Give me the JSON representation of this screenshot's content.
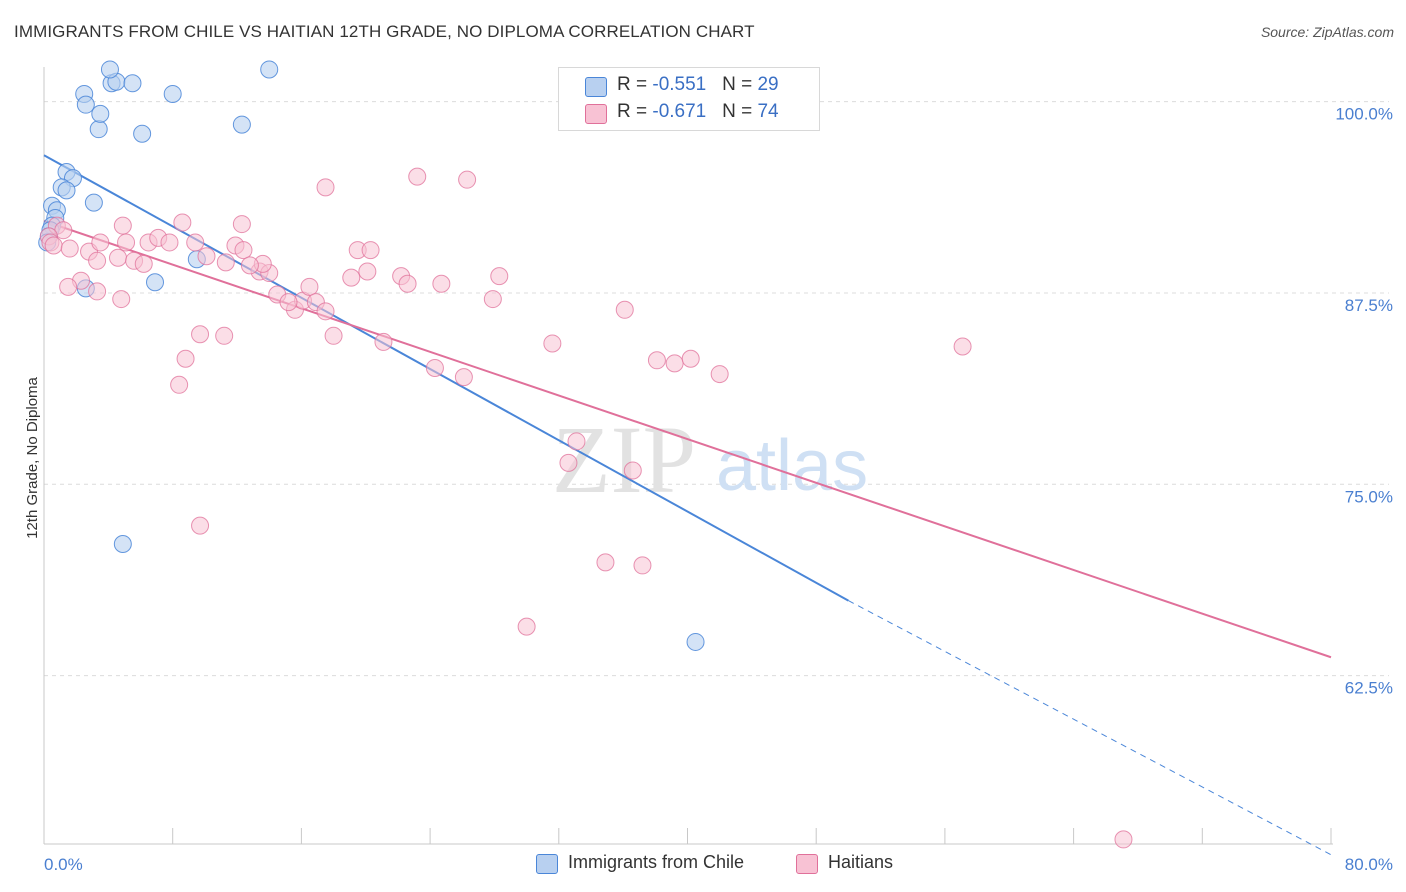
{
  "header": {
    "title": "IMMIGRANTS FROM CHILE VS HAITIAN 12TH GRADE, NO DIPLOMA CORRELATION CHART",
    "source": "Source: ZipAtlas.com"
  },
  "watermark": {
    "zip": "ZIP",
    "atlas": "atlas"
  },
  "legend": {
    "rows": [
      {
        "r_label": "R = ",
        "r_value": "-0.551",
        "n_label": "N = ",
        "n_value": "29"
      },
      {
        "r_label": "R = ",
        "r_value": "-0.671",
        "n_label": "N = ",
        "n_value": "74"
      }
    ]
  },
  "bottom_legend": {
    "chile": "Immigrants from Chile",
    "haitians": "Haitians"
  },
  "chart_data": {
    "type": "scatter",
    "title": "IMMIGRANTS FROM CHILE VS HAITIAN 12TH GRADE, NO DIPLOMA CORRELATION CHART",
    "xlabel": "",
    "ylabel": "12th Grade, No Diploma",
    "xlim": [
      0,
      80
    ],
    "ylim": [
      51.5,
      102
    ],
    "x_tick_labels": [
      "0.0%",
      "80.0%"
    ],
    "y_ticks": [
      62.5,
      75.0,
      87.5,
      100.0
    ],
    "y_tick_labels": [
      "62.5%",
      "75.0%",
      "87.5%",
      "100.0%"
    ],
    "colors": {
      "chile": "#4a86d8",
      "chile_fill": "#b8d0f0",
      "haitians": "#e0709a",
      "haitians_fill": "#f8c2d4",
      "tick": "#4a7fd0"
    },
    "series": [
      {
        "name": "Immigrants from Chile",
        "r": -0.551,
        "n": 29,
        "points": [
          [
            2.5,
            100.5
          ],
          [
            2.6,
            99.8
          ],
          [
            3.4,
            98.2
          ],
          [
            3.5,
            99.2
          ],
          [
            4.2,
            101.2
          ],
          [
            4.5,
            101.3
          ],
          [
            5.5,
            101.2
          ],
          [
            4.1,
            102.1
          ],
          [
            14.0,
            102.1
          ],
          [
            8.0,
            100.5
          ],
          [
            6.1,
            97.9
          ],
          [
            12.3,
            98.5
          ],
          [
            1.4,
            95.4
          ],
          [
            1.8,
            95.0
          ],
          [
            1.1,
            94.4
          ],
          [
            1.4,
            94.2
          ],
          [
            3.1,
            93.4
          ],
          [
            0.5,
            93.2
          ],
          [
            0.8,
            92.9
          ],
          [
            0.7,
            92.4
          ],
          [
            0.5,
            91.9
          ],
          [
            0.4,
            91.6
          ],
          [
            0.3,
            91.2
          ],
          [
            0.2,
            90.8
          ],
          [
            9.5,
            89.7
          ],
          [
            2.6,
            87.8
          ],
          [
            6.9,
            88.2
          ],
          [
            4.9,
            71.1
          ],
          [
            40.5,
            64.7
          ]
        ],
        "trend": {
          "x_start": 0,
          "y_start": 96.5,
          "x_solid_end": 50,
          "y_solid_end": 67.4,
          "x_dash_end": 80,
          "y_dash_end": 50.8
        }
      },
      {
        "name": "Haitians",
        "r": -0.671,
        "n": 74,
        "points": [
          [
            0.8,
            91.9
          ],
          [
            1.2,
            91.6
          ],
          [
            0.3,
            91.2
          ],
          [
            0.4,
            90.8
          ],
          [
            0.6,
            90.6
          ],
          [
            1.6,
            90.4
          ],
          [
            2.3,
            88.3
          ],
          [
            2.8,
            90.2
          ],
          [
            3.3,
            89.6
          ],
          [
            3.5,
            90.8
          ],
          [
            4.6,
            89.8
          ],
          [
            4.9,
            91.9
          ],
          [
            5.1,
            90.8
          ],
          [
            5.6,
            89.6
          ],
          [
            6.2,
            89.4
          ],
          [
            6.5,
            90.8
          ],
          [
            7.1,
            91.1
          ],
          [
            7.8,
            90.8
          ],
          [
            8.6,
            92.1
          ],
          [
            9.4,
            90.8
          ],
          [
            10.1,
            89.9
          ],
          [
            11.3,
            89.5
          ],
          [
            11.9,
            90.6
          ],
          [
            12.3,
            92.0
          ],
          [
            12.4,
            90.3
          ],
          [
            13.4,
            88.9
          ],
          [
            14.0,
            88.8
          ],
          [
            14.5,
            87.4
          ],
          [
            15.6,
            86.4
          ],
          [
            16.1,
            87.0
          ],
          [
            16.5,
            87.9
          ],
          [
            16.9,
            86.9
          ],
          [
            17.5,
            86.3
          ],
          [
            18.0,
            84.7
          ],
          [
            17.5,
            94.4
          ],
          [
            19.5,
            90.3
          ],
          [
            20.3,
            90.3
          ],
          [
            20.1,
            88.9
          ],
          [
            21.1,
            84.3
          ],
          [
            22.2,
            88.6
          ],
          [
            22.6,
            88.1
          ],
          [
            24.7,
            88.1
          ],
          [
            24.3,
            82.6
          ],
          [
            26.1,
            82.0
          ],
          [
            26.3,
            94.9
          ],
          [
            23.2,
            95.1
          ],
          [
            11.2,
            84.7
          ],
          [
            8.8,
            83.2
          ],
          [
            8.4,
            81.5
          ],
          [
            9.7,
            84.8
          ],
          [
            4.8,
            87.1
          ],
          [
            3.3,
            87.6
          ],
          [
            1.5,
            87.9
          ],
          [
            28.3,
            88.6
          ],
          [
            27.9,
            87.1
          ],
          [
            31.6,
            84.2
          ],
          [
            33.1,
            77.8
          ],
          [
            32.6,
            76.4
          ],
          [
            36.1,
            86.4
          ],
          [
            36.6,
            75.9
          ],
          [
            34.9,
            69.9
          ],
          [
            37.2,
            69.7
          ],
          [
            39.2,
            82.9
          ],
          [
            38.1,
            83.1
          ],
          [
            40.2,
            83.2
          ],
          [
            42.0,
            82.2
          ],
          [
            30.0,
            65.7
          ],
          [
            9.7,
            72.3
          ],
          [
            57.1,
            84.0
          ],
          [
            67.1,
            51.8
          ],
          [
            13.6,
            89.4
          ],
          [
            15.2,
            86.9
          ],
          [
            19.1,
            88.5
          ],
          [
            12.8,
            89.3
          ]
        ],
        "trend": {
          "x_start": 0,
          "y_start": 92.2,
          "x_end": 80,
          "y_end": 63.7
        }
      }
    ]
  }
}
